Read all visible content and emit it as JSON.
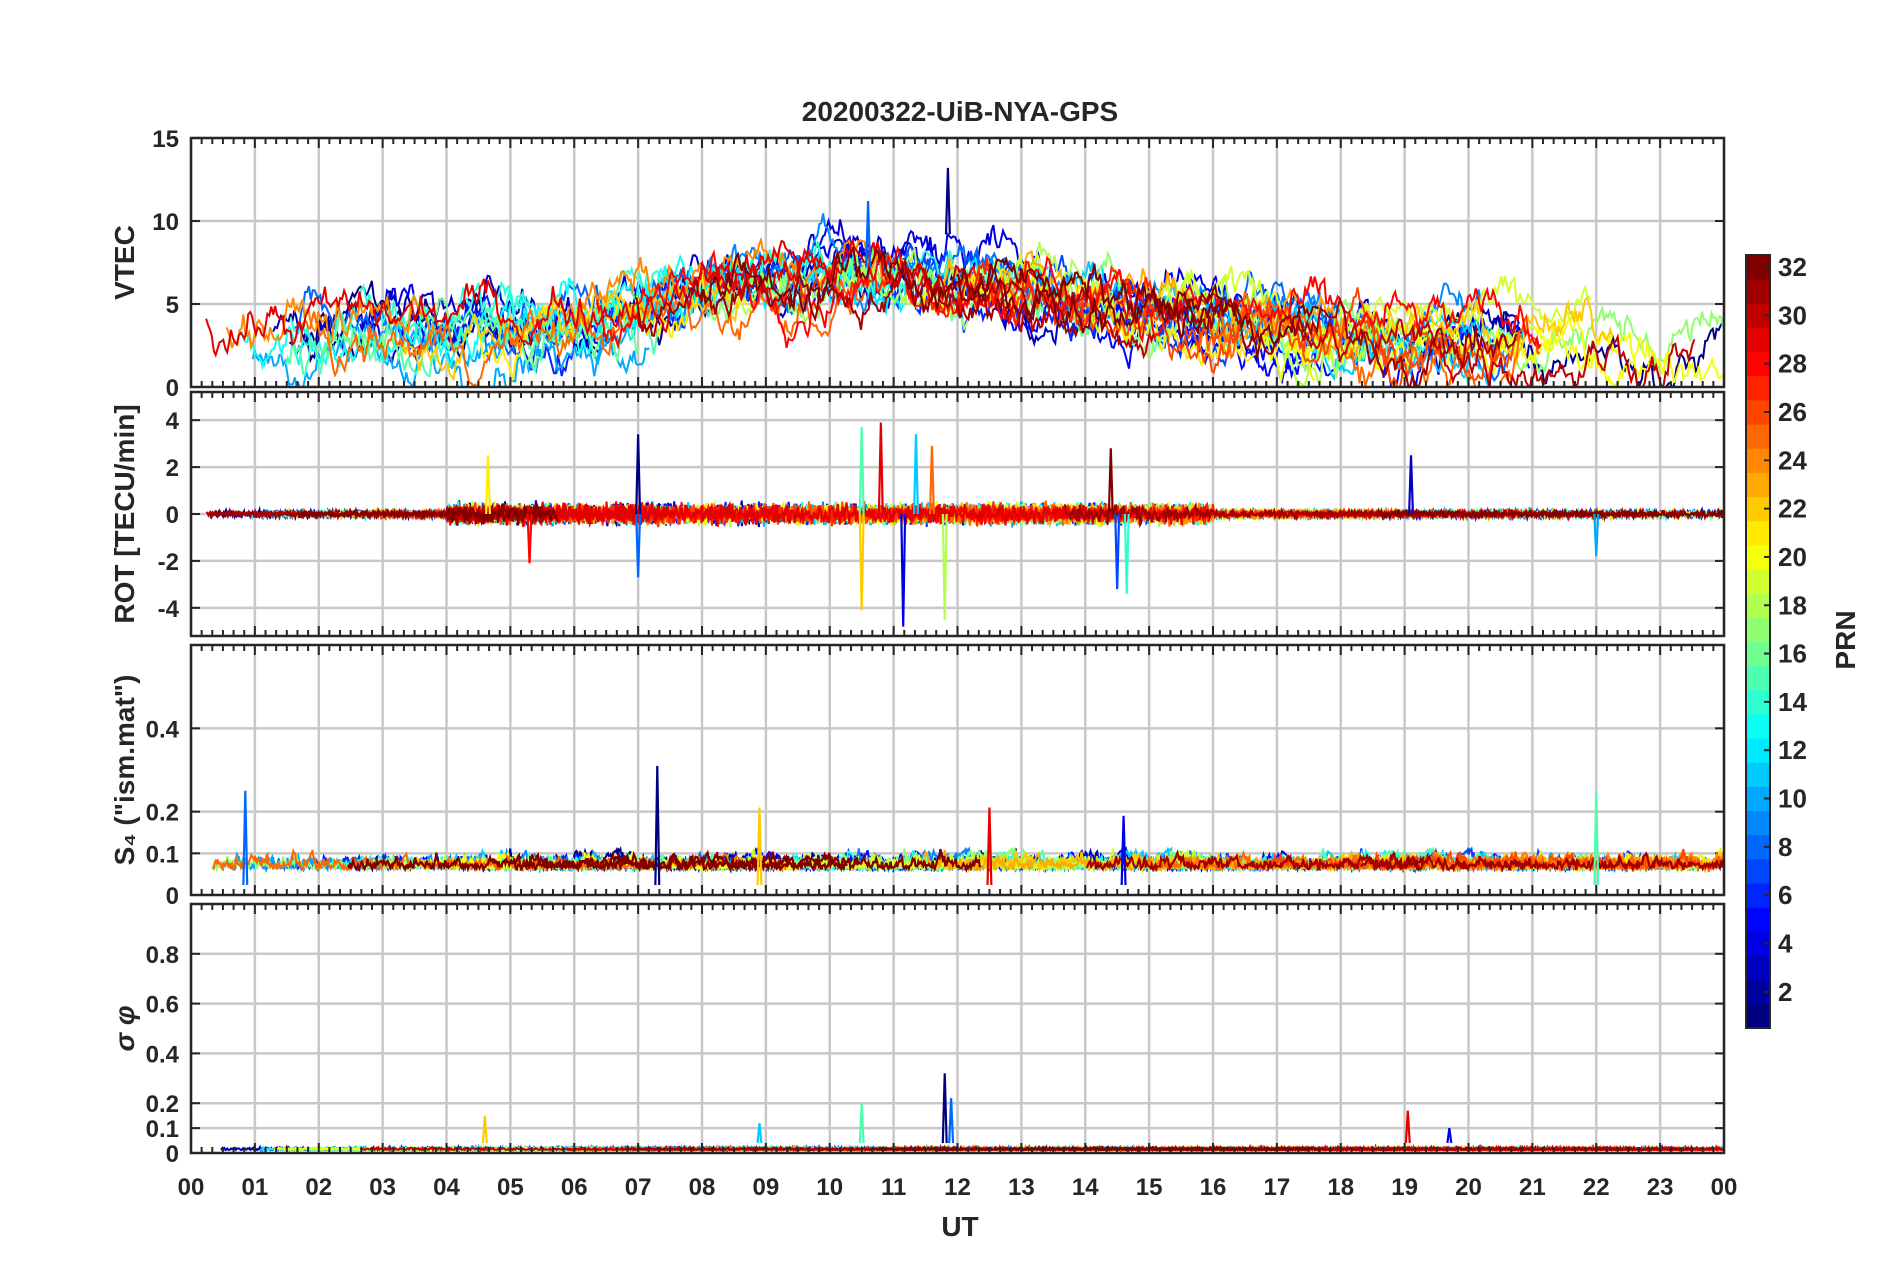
{
  "title": "20200322-UiB-NYA-GPS",
  "xlabel": "UT",
  "x_ticks": [
    "00",
    "01",
    "02",
    "03",
    "04",
    "05",
    "06",
    "07",
    "08",
    "09",
    "10",
    "11",
    "12",
    "13",
    "14",
    "15",
    "16",
    "17",
    "18",
    "19",
    "20",
    "21",
    "22",
    "23",
    "00"
  ],
  "colorbar": {
    "label": "PRN",
    "range": [
      1,
      32
    ],
    "ticks": [
      "2",
      "4",
      "6",
      "8",
      "10",
      "12",
      "14",
      "16",
      "18",
      "20",
      "22",
      "24",
      "26",
      "28",
      "30",
      "32"
    ],
    "colormap": "jet"
  },
  "chart_data": [
    {
      "type": "line",
      "ylabel": "VTEC",
      "ylim": [
        0,
        15
      ],
      "yticks": [
        "0",
        "5",
        "10",
        "15"
      ],
      "xlim": [
        0,
        24
      ],
      "grid": true,
      "series_note_values": "one line per GPS PRN satellite 1–32, colored by PRN",
      "events": [
        {
          "x": 11.85,
          "y": 13.2
        },
        {
          "x": 10.6,
          "y": 11.2
        }
      ]
    },
    {
      "type": "line",
      "ylabel": "ROT [TECU/min]",
      "ylim": [
        -5.2,
        5.2
      ],
      "yticks": [
        "-4",
        "-2",
        "0",
        "2",
        "4"
      ],
      "xlim": [
        0,
        24
      ],
      "grid": true,
      "events": [
        {
          "x": 7.0,
          "y": 3.4
        },
        {
          "x": 7.0,
          "y": -2.7
        },
        {
          "x": 10.5,
          "y": 3.7
        },
        {
          "x": 10.5,
          "y": -4.1
        },
        {
          "x": 10.8,
          "y": 3.9
        },
        {
          "x": 11.15,
          "y": -4.8
        },
        {
          "x": 11.35,
          "y": 3.4
        },
        {
          "x": 11.8,
          "y": -4.5
        },
        {
          "x": 11.6,
          "y": 2.9
        },
        {
          "x": 14.4,
          "y": 2.8
        },
        {
          "x": 14.5,
          "y": -3.2
        },
        {
          "x": 14.65,
          "y": -3.4
        },
        {
          "x": 4.65,
          "y": 2.5
        },
        {
          "x": 5.3,
          "y": -2.1
        },
        {
          "x": 19.1,
          "y": 2.5
        },
        {
          "x": 22.0,
          "y": -1.8
        }
      ]
    },
    {
      "type": "line",
      "ylabel": "S₄ (\"ism.mat\")",
      "ylim": [
        0,
        0.6
      ],
      "yticks": [
        "0",
        "0.1",
        "0.2",
        "0.4"
      ],
      "xlim": [
        0,
        24
      ],
      "grid": true,
      "events": [
        {
          "x": 7.3,
          "y": 0.31
        },
        {
          "x": 0.85,
          "y": 0.25
        },
        {
          "x": 22.0,
          "y": 0.25
        },
        {
          "x": 8.9,
          "y": 0.21
        },
        {
          "x": 12.5,
          "y": 0.21
        },
        {
          "x": 14.6,
          "y": 0.19
        }
      ]
    },
    {
      "type": "line",
      "ylabel": "σ φ",
      "ylim": [
        0,
        1.0
      ],
      "yticks": [
        "0",
        "0.1",
        "0.2",
        "0.4",
        "0.6",
        "0.8"
      ],
      "xlim": [
        0,
        24
      ],
      "grid": true,
      "events": [
        {
          "x": 11.8,
          "y": 0.32
        },
        {
          "x": 11.9,
          "y": 0.22
        },
        {
          "x": 10.5,
          "y": 0.2
        },
        {
          "x": 4.6,
          "y": 0.15
        },
        {
          "x": 19.05,
          "y": 0.17
        },
        {
          "x": 19.7,
          "y": 0.1
        },
        {
          "x": 8.9,
          "y": 0.12
        }
      ]
    }
  ]
}
